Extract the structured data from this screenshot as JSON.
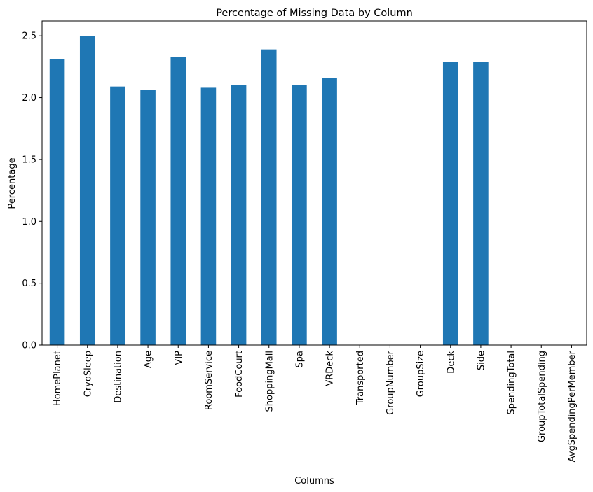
{
  "chart_data": {
    "type": "bar",
    "title": "Percentage of Missing Data by Column",
    "xlabel": "Columns",
    "ylabel": "Percentage",
    "ylim": [
      0,
      2.62
    ],
    "yticks": [
      "0.0",
      "0.5",
      "1.0",
      "1.5",
      "2.0",
      "2.5"
    ],
    "categories": [
      "HomePlanet",
      "CryoSleep",
      "Destination",
      "Age",
      "VIP",
      "RoomService",
      "FoodCourt",
      "ShoppingMall",
      "Spa",
      "VRDeck",
      "Transported",
      "GroupNumber",
      "GroupSize",
      "Deck",
      "Side",
      "SpendingTotal",
      "GroupTotalSpending",
      "AvgSpendingPerMember"
    ],
    "values": [
      2.31,
      2.5,
      2.09,
      2.06,
      2.33,
      2.08,
      2.1,
      2.39,
      2.1,
      2.16,
      0,
      0,
      0,
      2.29,
      2.29,
      0,
      0,
      0
    ],
    "bar_color": "#1f77b4",
    "grid": false,
    "legend": "none"
  }
}
